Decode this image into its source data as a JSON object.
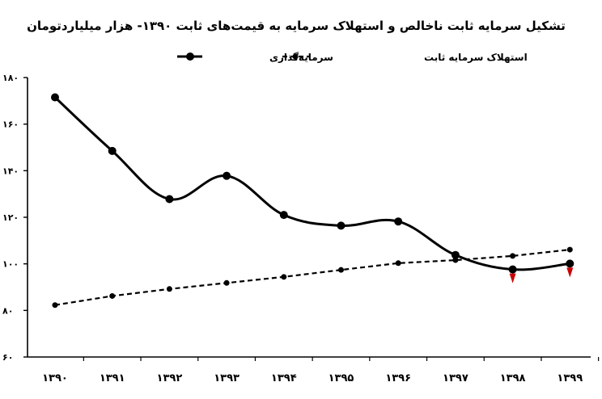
{
  "chart_data": {
    "type": "line",
    "title": "تشکیل سرمایه ثابت ناخالص و استهلاک سرمایه به قیمت‌های ثابت ۱۳۹۰- هزار میلیاردتومان",
    "categories": [
      "۱۳۹۰",
      "۱۳۹۱",
      "۱۳۹۲",
      "۱۳۹۳",
      "۱۳۹۴",
      "۱۳۹۵",
      "۱۳۹۶",
      "۱۳۹۷",
      "۱۳۹۸",
      "۱۳۹۹"
    ],
    "y_tick_labels": [
      "۶۰",
      "۸۰",
      "۱۰۰",
      "۱۲۰",
      "۱۴۰",
      "۱۶۰",
      "۱۸۰"
    ],
    "y_ticks": [
      60,
      80,
      100,
      120,
      140,
      160,
      180
    ],
    "ylim": [
      60,
      180
    ],
    "grid": false,
    "legend_position": "top",
    "series": [
      {
        "name": "سرمایه‌گذاری",
        "style": "solid",
        "color": "#000000",
        "values": [
          171.5,
          148.5,
          127.8,
          137.8,
          121.0,
          116.4,
          118.2,
          103.8,
          97.6,
          100.1
        ]
      },
      {
        "name": "استهلاک سرمایه ثابت",
        "style": "dashed",
        "color": "#000000",
        "values": [
          82.3,
          86.2,
          89.2,
          91.8,
          94.4,
          97.4,
          100.3,
          101.6,
          103.4,
          106.1
        ]
      }
    ],
    "down_markers": {
      "color": "#cc0000",
      "categories": [
        "۱۳۹۸",
        "۱۳۹۹"
      ]
    }
  }
}
